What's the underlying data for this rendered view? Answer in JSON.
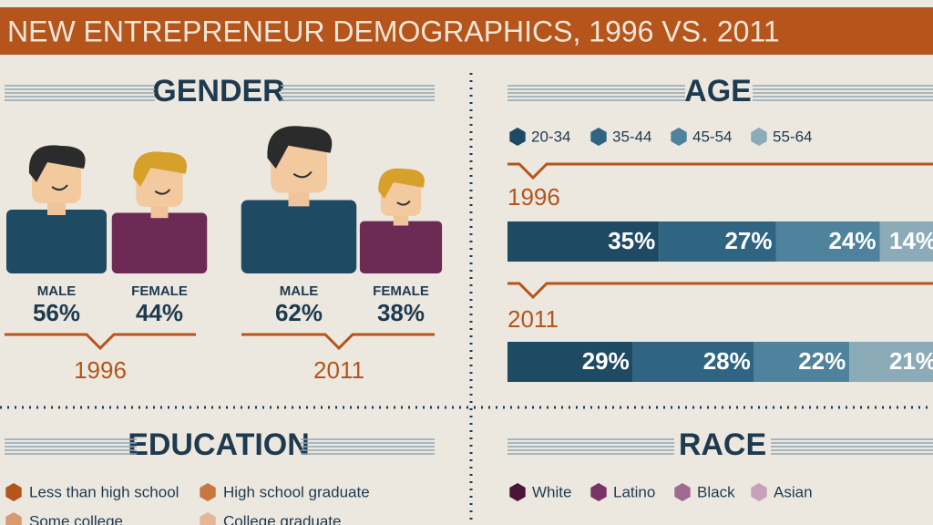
{
  "header": {
    "title": "NEW ENTREPRENEUR DEMOGRAPHICS, 1996 VS. 2011"
  },
  "gender": {
    "heading": "GENDER",
    "years": [
      {
        "year": "1996",
        "male": {
          "label": "MALE",
          "value": "56%"
        },
        "female": {
          "label": "FEMALE",
          "value": "44%"
        }
      },
      {
        "year": "2011",
        "male": {
          "label": "MALE",
          "value": "62%"
        },
        "female": {
          "label": "FEMALE",
          "value": "38%"
        }
      }
    ]
  },
  "chart_data": {
    "type": "bar",
    "stacked": true,
    "orientation": "horizontal",
    "title": "AGE",
    "categories": [
      "1996",
      "2011"
    ],
    "series": [
      {
        "name": "20-34",
        "color": "#1e4a63",
        "values": [
          35,
          29
        ],
        "value_labels": [
          "35%",
          "29%"
        ]
      },
      {
        "name": "35-44",
        "color": "#2f6582",
        "values": [
          27,
          28
        ],
        "value_labels": [
          "27%",
          "28%"
        ]
      },
      {
        "name": "45-54",
        "color": "#4f829c",
        "values": [
          24,
          22
        ],
        "value_labels": [
          "24%",
          "22%"
        ]
      },
      {
        "name": "55-64",
        "color": "#8cabb9",
        "values": [
          14,
          21
        ],
        "value_labels": [
          "14%",
          "21%"
        ]
      }
    ]
  },
  "education": {
    "heading": "EDUCATION",
    "legend": [
      {
        "name": "Less than high school",
        "color": "#b5541b"
      },
      {
        "name": "High school graduate",
        "color": "#c7773f"
      },
      {
        "name": "Some college",
        "color": "#d89a6e"
      },
      {
        "name": "College graduate",
        "color": "#e3b797"
      }
    ]
  },
  "race": {
    "heading": "RACE",
    "legend": [
      {
        "name": "White",
        "color": "#4a1538"
      },
      {
        "name": "Latino",
        "color": "#7a3365"
      },
      {
        "name": "Black",
        "color": "#a06a90"
      },
      {
        "name": "Asian",
        "color": "#c7a0bb"
      }
    ]
  }
}
